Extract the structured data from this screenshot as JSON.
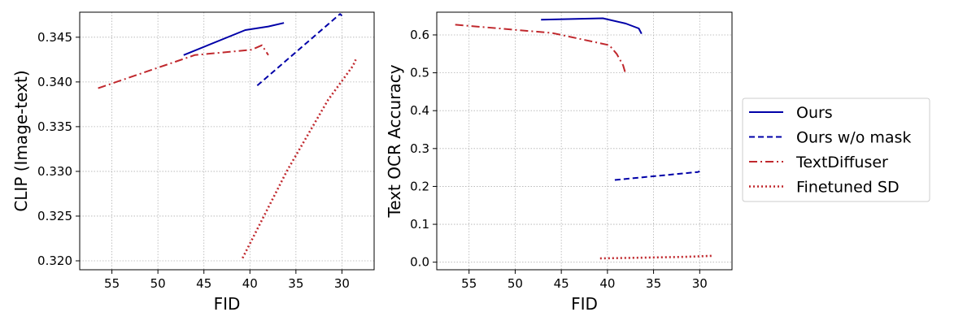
{
  "chart_data": [
    {
      "type": "line",
      "title": "",
      "xlabel": "FID",
      "ylabel": "CLIP (Image-text)",
      "x_inverted": true,
      "xlim": [
        58.5,
        26.5
      ],
      "ylim": [
        0.319,
        0.3478
      ],
      "grid": true,
      "xticks": [
        {
          "v": 55,
          "label": "55"
        },
        {
          "v": 50,
          "label": "50"
        },
        {
          "v": 45,
          "label": "45"
        },
        {
          "v": 40,
          "label": "40"
        },
        {
          "v": 35,
          "label": "35"
        },
        {
          "v": 30,
          "label": "30"
        }
      ],
      "yticks": [
        {
          "v": 0.32,
          "label": "0.320"
        },
        {
          "v": 0.325,
          "label": "0.325"
        },
        {
          "v": 0.33,
          "label": "0.330"
        },
        {
          "v": 0.335,
          "label": "0.335"
        },
        {
          "v": 0.34,
          "label": "0.340"
        },
        {
          "v": 0.345,
          "label": "0.345"
        }
      ],
      "series": [
        {
          "key": "ours",
          "name": "Ours",
          "x": [
            47.2,
            40.5,
            38.0,
            36.3
          ],
          "y": [
            0.343,
            0.3458,
            0.3462,
            0.3466
          ]
        },
        {
          "key": "ours_nomask",
          "name": "Ours w/o mask",
          "x": [
            39.2,
            30.2,
            30.0
          ],
          "y": [
            0.3396,
            0.3476,
            0.3474
          ]
        },
        {
          "key": "textdiffuser",
          "name": "TextDiffuser",
          "x": [
            56.5,
            46.0,
            39.8,
            38.7,
            38.0
          ],
          "y": [
            0.3393,
            0.343,
            0.3436,
            0.3441,
            0.343
          ]
        },
        {
          "key": "finetuned_sd",
          "name": "Finetuned SD",
          "x": [
            40.8,
            36.0,
            31.5,
            28.8,
            28.5
          ],
          "y": [
            0.3203,
            0.33,
            0.338,
            0.3418,
            0.3425
          ]
        }
      ]
    },
    {
      "type": "line",
      "title": "",
      "xlabel": "FID",
      "ylabel": "Text OCR Accuracy",
      "x_inverted": true,
      "xlim": [
        58.5,
        26.5
      ],
      "ylim": [
        -0.02,
        0.66
      ],
      "grid": true,
      "xticks": [
        {
          "v": 55,
          "label": "55"
        },
        {
          "v": 50,
          "label": "50"
        },
        {
          "v": 45,
          "label": "45"
        },
        {
          "v": 40,
          "label": "40"
        },
        {
          "v": 35,
          "label": "35"
        },
        {
          "v": 30,
          "label": "30"
        }
      ],
      "yticks": [
        {
          "v": 0.0,
          "label": "0.0"
        },
        {
          "v": 0.1,
          "label": "0.1"
        },
        {
          "v": 0.2,
          "label": "0.2"
        },
        {
          "v": 0.3,
          "label": "0.3"
        },
        {
          "v": 0.4,
          "label": "0.4"
        },
        {
          "v": 0.5,
          "label": "0.5"
        },
        {
          "v": 0.6,
          "label": "0.6"
        }
      ],
      "series": [
        {
          "key": "ours",
          "name": "Ours",
          "x": [
            47.2,
            40.5,
            38.0,
            36.6,
            36.3
          ],
          "y": [
            0.64,
            0.644,
            0.63,
            0.617,
            0.603
          ]
        },
        {
          "key": "ours_nomask",
          "name": "Ours w/o mask",
          "x": [
            39.2,
            30.2,
            30.0
          ],
          "y": [
            0.217,
            0.238,
            0.24
          ]
        },
        {
          "key": "textdiffuser",
          "name": "TextDiffuser",
          "x": [
            56.5,
            46.0,
            39.8,
            39.0,
            38.3,
            38.0
          ],
          "y": [
            0.627,
            0.605,
            0.573,
            0.55,
            0.52,
            0.495
          ]
        },
        {
          "key": "finetuned_sd",
          "name": "Finetuned SD",
          "x": [
            40.8,
            36.0,
            31.5,
            28.5
          ],
          "y": [
            0.01,
            0.012,
            0.014,
            0.017
          ]
        }
      ]
    }
  ],
  "legend": {
    "placement": "right",
    "entries": [
      {
        "key": "ours",
        "label": "Ours",
        "color": "#0000a8",
        "dash": "solid"
      },
      {
        "key": "ours_nomask",
        "label": "Ours w/o mask",
        "color": "#0000a8",
        "dash": "dashed"
      },
      {
        "key": "textdiffuser",
        "label": "TextDiffuser",
        "color": "#c0282d",
        "dash": "dashdot"
      },
      {
        "key": "finetuned_sd",
        "label": "Finetuned SD",
        "color": "#c0282d",
        "dash": "dotted"
      }
    ]
  }
}
